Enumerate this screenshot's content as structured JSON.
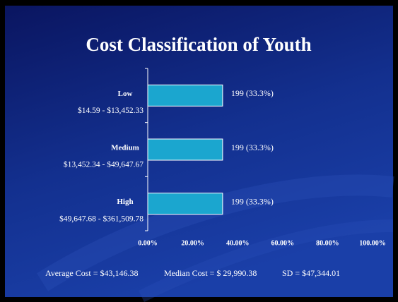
{
  "chart_data": {
    "type": "bar",
    "orientation": "horizontal",
    "title": "Cost Classification of Youth",
    "categories": [
      "Low",
      "Medium",
      "High"
    ],
    "category_ranges": [
      "$14.59 - $13,452.33",
      "$13,452.34 - $49,647.67",
      "$49,647.68 - $361,509.78"
    ],
    "values": [
      33.3,
      33.3,
      33.3
    ],
    "value_labels": [
      "199 (33.3%)",
      "199 (33.3%)",
      "199 (33.3%)"
    ],
    "color": "#1ba6cf",
    "xlim": [
      0,
      100
    ],
    "xticks": [
      {
        "value": 0,
        "label": "0.00%"
      },
      {
        "value": 20,
        "label": "20.00%"
      },
      {
        "value": 40,
        "label": "40.00%"
      },
      {
        "value": 60,
        "label": "60.00%"
      },
      {
        "value": 80,
        "label": "80.00%"
      },
      {
        "value": 100,
        "label": "100.00%"
      }
    ],
    "grid": false,
    "notes": [
      "Average Cost = $43,146.38",
      "Median Cost = $ 29,990.38",
      "SD = $47,344.01"
    ]
  }
}
